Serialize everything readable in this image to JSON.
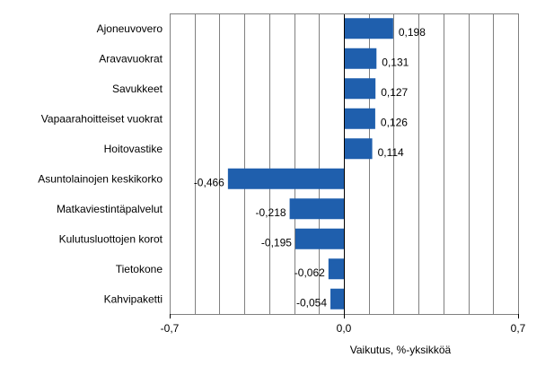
{
  "chart_data": {
    "type": "bar",
    "orientation": "horizontal",
    "categories": [
      "Ajoneuvovero",
      "Aravavuokrat",
      "Savukkeet",
      "Vapaarahoitteiset vuokrat",
      "Hoitovastike",
      "Asuntolainojen keskikorko",
      "Matkaviestintäpalvelut",
      "Kulutusluottojen korot",
      "Tietokone",
      "Kahvipaketti"
    ],
    "values": [
      0.198,
      0.131,
      0.127,
      0.126,
      0.114,
      -0.466,
      -0.218,
      -0.195,
      -0.062,
      -0.054
    ],
    "value_labels": [
      "0,198",
      "0,131",
      "0,127",
      "0,126",
      "0,114",
      "-0,466",
      "-0,218",
      "-0,195",
      "-0,062",
      "-0,054"
    ],
    "xlim": [
      -0.7,
      0.7
    ],
    "x_ticks": [
      -0.7,
      0.0,
      0.7
    ],
    "x_tick_labels": [
      "-0,7",
      "0,0",
      "0,7"
    ],
    "gridline_step": 0.1,
    "xlabel": "Vaikutus, %-yksikköä",
    "ylabel": "",
    "title": "",
    "grid": true,
    "legend": "none",
    "colors": {
      "bar": "#1f5fad",
      "grid": "#808080",
      "frame": "#808080",
      "text": "#000000"
    }
  }
}
